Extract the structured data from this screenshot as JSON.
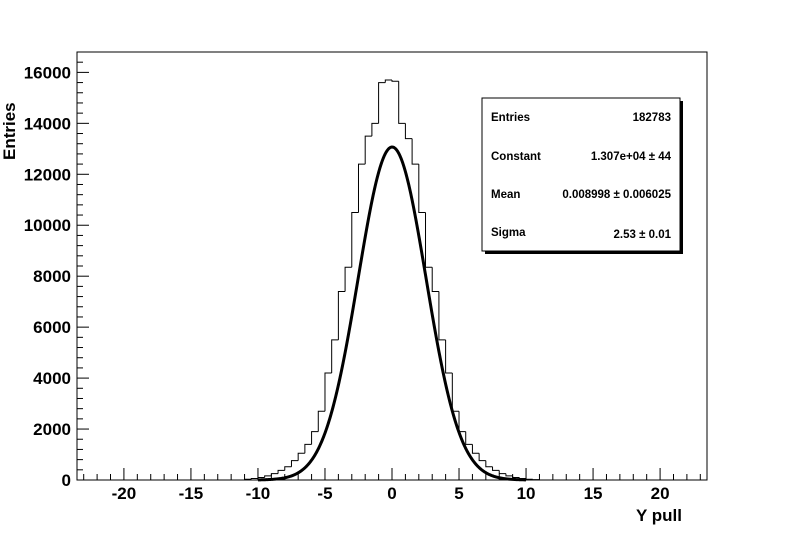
{
  "chart_data": {
    "type": "histogram",
    "xlabel": "Y pull",
    "ylabel": "Entries",
    "xlim": [
      -23.5,
      23.5
    ],
    "ylim": [
      0,
      16800
    ],
    "x_ticks": [
      -20,
      -15,
      -10,
      -5,
      0,
      5,
      10,
      15,
      20
    ],
    "y_ticks": [
      0,
      2000,
      4000,
      6000,
      8000,
      10000,
      12000,
      14000,
      16000
    ],
    "x_tick_labels": [
      "-20",
      "-15",
      "-10",
      "-5",
      "0",
      "5",
      "10",
      "15",
      "20"
    ],
    "y_tick_labels": [
      "0",
      "2000",
      "4000",
      "6000",
      "8000",
      "10000",
      "12000",
      "14000",
      "16000"
    ],
    "bin_width": 0.5,
    "histogram": {
      "bin_centers": [
        -10.75,
        -10.25,
        -9.75,
        -9.25,
        -8.75,
        -8.25,
        -7.75,
        -7.25,
        -6.75,
        -6.25,
        -5.75,
        -5.25,
        -4.75,
        -4.25,
        -3.75,
        -3.25,
        -2.75,
        -2.25,
        -1.75,
        -1.25,
        -0.75,
        -0.25,
        0.25,
        0.75,
        1.25,
        1.75,
        2.25,
        2.75,
        3.25,
        3.75,
        4.25,
        4.75,
        5.25,
        5.75,
        6.25,
        6.75,
        7.25,
        7.75,
        8.25,
        8.75,
        9.25,
        9.75,
        10.25,
        10.75
      ],
      "counts": [
        30,
        60,
        100,
        160,
        250,
        380,
        520,
        760,
        1050,
        1400,
        1900,
        2700,
        4200,
        5500,
        7400,
        8350,
        10500,
        12400,
        13500,
        14000,
        15600,
        15700,
        15650,
        14000,
        13400,
        12400,
        10500,
        8350,
        7400,
        5500,
        4200,
        2700,
        1900,
        1400,
        1050,
        760,
        520,
        380,
        250,
        160,
        100,
        60,
        30,
        15
      ]
    },
    "fit": {
      "type": "gaussian",
      "constant": 13070,
      "mean": 0.008998,
      "sigma": 2.53
    },
    "stats_box": {
      "rows": [
        {
          "label": "Entries",
          "value": "182783"
        },
        {
          "label": "Constant",
          "value": "1.307e+04 ± 44"
        },
        {
          "label": "Mean",
          "value": "0.008998 ± 0.006025"
        },
        {
          "label": "Sigma",
          "value": "2.53 ± 0.01"
        }
      ]
    },
    "colors": {
      "background": "#ffffff",
      "histogram": "#000000",
      "fit": "#000000"
    },
    "grid": false,
    "legend": "top-right"
  }
}
